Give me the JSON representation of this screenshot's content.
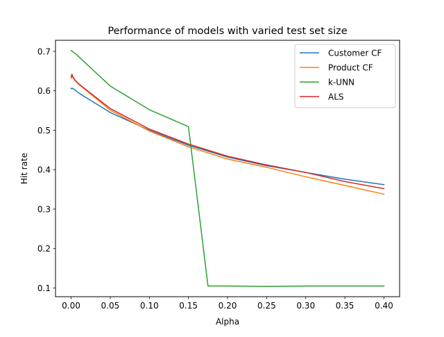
{
  "chart_data": {
    "type": "line",
    "title": "Performance of models with varied test set size",
    "xlabel": "Alpha",
    "ylabel": "Hit rate",
    "xlim": [
      -0.02,
      0.42
    ],
    "ylim": [
      0.078,
      0.728
    ],
    "x_ticks": [
      0.0,
      0.05,
      0.1,
      0.15,
      0.2,
      0.25,
      0.3,
      0.35,
      0.4
    ],
    "x_tick_labels": [
      "0.00",
      "0.05",
      "0.10",
      "0.15",
      "0.20",
      "0.25",
      "0.30",
      "0.35",
      "0.40"
    ],
    "y_ticks": [
      0.1,
      0.2,
      0.3,
      0.4,
      0.5,
      0.6,
      0.7
    ],
    "y_tick_labels": [
      "0.1",
      "0.2",
      "0.3",
      "0.4",
      "0.5",
      "0.6",
      "0.7"
    ],
    "grid": false,
    "legend_position": "top-right",
    "series": [
      {
        "name": "Customer CF",
        "color": "#1f77b4",
        "x": [
          0.0,
          0.001,
          0.005,
          0.01,
          0.05,
          0.1,
          0.15,
          0.2,
          0.25,
          0.3,
          0.35,
          0.4
        ],
        "y": [
          0.605,
          0.607,
          0.602,
          0.594,
          0.545,
          0.5,
          0.462,
          0.432,
          0.41,
          0.393,
          0.376,
          0.362
        ]
      },
      {
        "name": "Product CF",
        "color": "#ff7f0e",
        "x": [
          0.0,
          0.001,
          0.002,
          0.005,
          0.01,
          0.05,
          0.1,
          0.15,
          0.2,
          0.25,
          0.3,
          0.35,
          0.4
        ],
        "y": [
          0.632,
          0.638,
          0.634,
          0.626,
          0.616,
          0.551,
          0.498,
          0.458,
          0.427,
          0.406,
          0.382,
          0.36,
          0.338
        ]
      },
      {
        "name": "k-UNN",
        "color": "#2ca02c",
        "x": [
          0.0,
          0.005,
          0.01,
          0.05,
          0.1,
          0.15,
          0.175,
          0.2,
          0.25,
          0.3,
          0.35,
          0.4
        ],
        "y": [
          0.702,
          0.695,
          0.686,
          0.612,
          0.552,
          0.509,
          0.105,
          0.105,
          0.104,
          0.105,
          0.105,
          0.105
        ]
      },
      {
        "name": "ALS",
        "color": "#d62728",
        "x": [
          0.0,
          0.001,
          0.002,
          0.005,
          0.01,
          0.05,
          0.1,
          0.15,
          0.2,
          0.25,
          0.3,
          0.35,
          0.4
        ],
        "y": [
          0.635,
          0.642,
          0.636,
          0.627,
          0.617,
          0.555,
          0.503,
          0.465,
          0.434,
          0.412,
          0.393,
          0.37,
          0.352
        ]
      }
    ]
  }
}
